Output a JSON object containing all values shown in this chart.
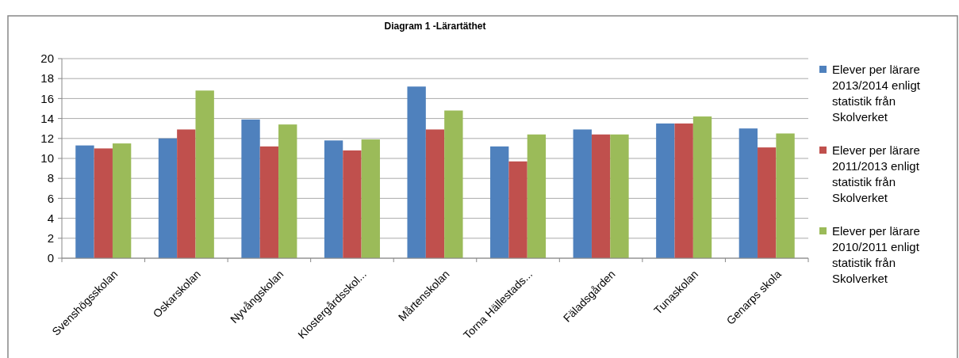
{
  "chart_data": {
    "type": "bar",
    "title": "Diagram 1 -Lärartäthet",
    "categories": [
      "Svenshögsskolan",
      "Oskarskolan",
      "Nyvångskolan",
      "Klostergårdsskol...",
      "Mårtenskolan",
      "Torna Hällestads...",
      "Fäladsgården",
      "Tunaskolan",
      "Genarps skola"
    ],
    "series": [
      {
        "name": "Elever per lärare 2013/2014 enligt statistik från Skolverket",
        "color": "#4f81bd",
        "values": [
          11.3,
          12.0,
          13.9,
          11.8,
          17.2,
          11.2,
          12.9,
          13.5,
          13.0
        ]
      },
      {
        "name": "Elever per lärare 2011/2013 enligt statistik från Skolverket",
        "color": "#c0504d",
        "values": [
          11.0,
          12.9,
          11.2,
          10.8,
          12.9,
          9.7,
          12.4,
          13.5,
          11.1
        ]
      },
      {
        "name": "Elever per lärare 2010/2011 enligt statistik från Skolverket",
        "color": "#9bbb59",
        "values": [
          11.5,
          16.8,
          13.4,
          11.9,
          14.8,
          12.4,
          12.4,
          14.2,
          12.5
        ]
      }
    ],
    "ylim": [
      0,
      20
    ],
    "yticks": [
      0,
      2,
      4,
      6,
      8,
      10,
      12,
      14,
      16,
      18,
      20
    ],
    "grid": "y",
    "legend": "right"
  }
}
